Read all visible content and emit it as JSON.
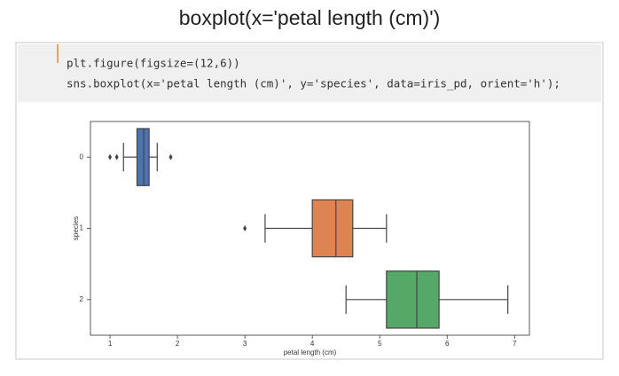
{
  "title": "boxplot(x='petal length (cm)')",
  "code": [
    "plt.figure(figsize=(12,6))",
    "sns.boxplot(x='petal length (cm)', y='species', data=iris_pd, orient='h');"
  ],
  "chart_data": {
    "type": "box",
    "orient": "h",
    "xlabel": "petal length (cm)",
    "ylabel": "species",
    "categories": [
      "0",
      "1",
      "2"
    ],
    "colors": [
      "#4c72b0",
      "#dd8452",
      "#55a868"
    ],
    "boxes": [
      {
        "whislo": 1.2,
        "q1": 1.4,
        "med": 1.5,
        "q3": 1.58,
        "whishi": 1.7,
        "fliers": [
          1.0,
          1.1,
          1.9
        ]
      },
      {
        "whislo": 3.3,
        "q1": 4.0,
        "med": 4.35,
        "q3": 4.6,
        "whishi": 5.1,
        "fliers": [
          3.0
        ]
      },
      {
        "whislo": 4.5,
        "q1": 5.1,
        "med": 5.55,
        "q3": 5.88,
        "whishi": 6.9,
        "fliers": []
      }
    ],
    "xlim": [
      0.71,
      7.22
    ],
    "xticks": [
      1,
      2,
      3,
      4,
      5,
      6,
      7
    ]
  }
}
